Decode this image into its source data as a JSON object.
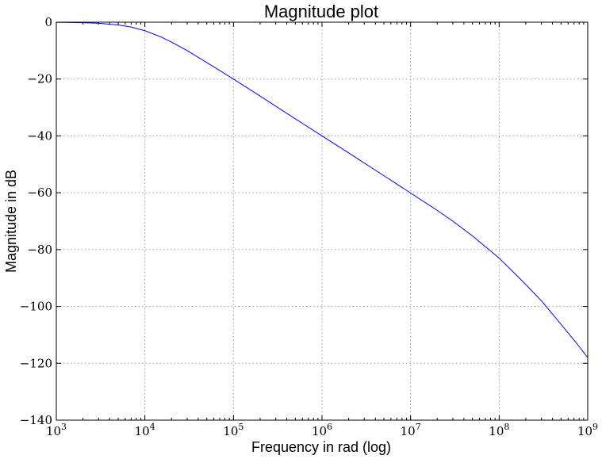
{
  "chart_data": {
    "type": "line",
    "title": "Magnitude plot",
    "xlabel": "Frequency in rad (log)",
    "ylabel": "Magnitude in dB",
    "xscale": "log",
    "xlim": [
      1000,
      1000000000
    ],
    "ylim": [
      -140,
      0
    ],
    "grid": true,
    "x_ticks": [
      {
        "value": 1000,
        "base": "10",
        "exp": "3"
      },
      {
        "value": 10000,
        "base": "10",
        "exp": "4"
      },
      {
        "value": 100000,
        "base": "10",
        "exp": "5"
      },
      {
        "value": 1000000,
        "base": "10",
        "exp": "6"
      },
      {
        "value": 10000000,
        "base": "10",
        "exp": "7"
      },
      {
        "value": 100000000,
        "base": "10",
        "exp": "8"
      },
      {
        "value": 1000000000,
        "base": "10",
        "exp": "9"
      }
    ],
    "y_ticks": [
      {
        "value": 0,
        "label": "0"
      },
      {
        "value": -20,
        "label": "−20"
      },
      {
        "value": -40,
        "label": "−40"
      },
      {
        "value": -60,
        "label": "−60"
      },
      {
        "value": -80,
        "label": "−80"
      },
      {
        "value": -100,
        "label": "−100"
      },
      {
        "value": -120,
        "label": "−120"
      },
      {
        "value": -140,
        "label": "−140"
      }
    ],
    "series": [
      {
        "color": "#0000ff",
        "x": [
          1000,
          2000,
          3000,
          5000,
          7000,
          10000,
          15000,
          20000,
          30000,
          50000,
          70000,
          100000,
          200000,
          500000,
          1000000,
          2000000,
          5000000,
          10000000,
          20000000,
          30000000,
          50000000,
          70000000,
          100000000,
          150000000,
          200000000,
          300000000,
          500000000,
          700000000,
          1000000000
        ],
        "y": [
          -0.04,
          -0.17,
          -0.37,
          -0.97,
          -1.7,
          -3.0,
          -5.1,
          -7.0,
          -10.0,
          -14.2,
          -17.0,
          -20.0,
          -26.0,
          -34.0,
          -40.0,
          -46.0,
          -54.0,
          -60.1,
          -66.2,
          -70.0,
          -75.2,
          -79.0,
          -83.0,
          -88.4,
          -92.3,
          -98.0,
          -106.3,
          -111.8,
          -118.0
        ]
      }
    ]
  }
}
